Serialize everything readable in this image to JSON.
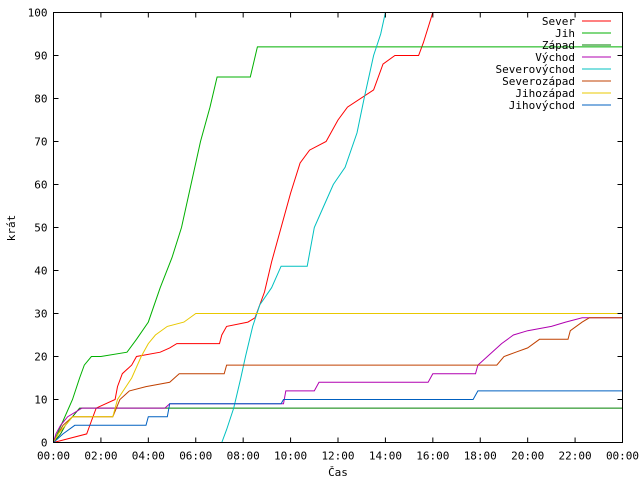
{
  "chart_data": {
    "type": "line",
    "title": "",
    "xlabel": "Čas",
    "ylabel": "krát",
    "xlim": [
      0,
      24
    ],
    "ylim": [
      0,
      100
    ],
    "x_tick_labels": [
      "00:00",
      "02:00",
      "04:00",
      "06:00",
      "08:00",
      "10:00",
      "12:00",
      "14:00",
      "16:00",
      "18:00",
      "20:00",
      "22:00",
      "00:00"
    ],
    "y_ticks": [
      0,
      10,
      20,
      30,
      40,
      50,
      60,
      70,
      80,
      90,
      100
    ],
    "grid": false,
    "legend_position": "top-right",
    "series": [
      {
        "name": "Sever",
        "color": "#ff0000",
        "points": [
          [
            0,
            0
          ],
          [
            1.4,
            2
          ],
          [
            1.6,
            5
          ],
          [
            1.8,
            8
          ],
          [
            2.6,
            10
          ],
          [
            2.7,
            13
          ],
          [
            2.9,
            16
          ],
          [
            3.3,
            18
          ],
          [
            3.5,
            20
          ],
          [
            4.5,
            21
          ],
          [
            4.9,
            22
          ],
          [
            5.2,
            23
          ],
          [
            7.0,
            23
          ],
          [
            7.1,
            25
          ],
          [
            7.3,
            27
          ],
          [
            8.2,
            28
          ],
          [
            8.5,
            29
          ],
          [
            8.9,
            35
          ],
          [
            9.2,
            42
          ],
          [
            9.6,
            50
          ],
          [
            10.0,
            58
          ],
          [
            10.4,
            65
          ],
          [
            10.8,
            68
          ],
          [
            11.5,
            70
          ],
          [
            12.0,
            75
          ],
          [
            12.4,
            78
          ],
          [
            13.5,
            82
          ],
          [
            13.9,
            88
          ],
          [
            14.4,
            90
          ],
          [
            15.4,
            90
          ],
          [
            15.6,
            93
          ],
          [
            16.0,
            100
          ]
        ]
      },
      {
        "name": "Jih",
        "color": "#00b000",
        "points": [
          [
            0,
            0
          ],
          [
            0.4,
            5
          ],
          [
            0.8,
            10
          ],
          [
            1.1,
            15
          ],
          [
            1.3,
            18
          ],
          [
            1.6,
            20
          ],
          [
            2.0,
            20
          ],
          [
            3.1,
            21
          ],
          [
            3.5,
            24
          ],
          [
            4.0,
            28
          ],
          [
            4.5,
            36
          ],
          [
            5.0,
            43
          ],
          [
            5.4,
            50
          ],
          [
            5.8,
            60
          ],
          [
            6.2,
            70
          ],
          [
            6.6,
            78
          ],
          [
            6.9,
            85
          ],
          [
            8.3,
            85
          ],
          [
            8.6,
            92
          ],
          [
            24.0,
            92
          ]
        ]
      },
      {
        "name": "Západ",
        "color": "#008000",
        "points": [
          [
            0,
            0
          ],
          [
            0.3,
            2
          ],
          [
            0.5,
            4
          ],
          [
            0.8,
            6
          ],
          [
            1.1,
            8
          ],
          [
            24.0,
            8
          ]
        ]
      },
      {
        "name": "Východ",
        "color": "#b000b0",
        "points": [
          [
            0,
            0
          ],
          [
            0.1,
            2
          ],
          [
            0.3,
            4
          ],
          [
            0.6,
            6
          ],
          [
            1.2,
            8
          ],
          [
            4.7,
            8
          ],
          [
            4.9,
            9
          ],
          [
            9.7,
            9
          ],
          [
            9.8,
            12
          ],
          [
            11.0,
            12
          ],
          [
            11.2,
            14
          ],
          [
            15.8,
            14
          ],
          [
            16.0,
            16
          ],
          [
            17.8,
            16
          ],
          [
            17.9,
            18
          ],
          [
            18.3,
            20
          ],
          [
            18.9,
            23
          ],
          [
            19.4,
            25
          ],
          [
            20.0,
            26
          ],
          [
            21.0,
            27
          ],
          [
            21.6,
            28
          ],
          [
            22.3,
            29
          ],
          [
            24.0,
            29
          ]
        ]
      },
      {
        "name": "Severovýchod",
        "color": "#00c0c0",
        "points": [
          [
            0,
            0
          ],
          [
            7.1,
            0
          ],
          [
            7.3,
            3
          ],
          [
            7.6,
            8
          ],
          [
            7.9,
            15
          ],
          [
            8.1,
            20
          ],
          [
            8.4,
            27
          ],
          [
            8.7,
            32
          ],
          [
            9.2,
            36
          ],
          [
            9.6,
            41
          ],
          [
            10.7,
            41
          ],
          [
            11.0,
            50
          ],
          [
            11.4,
            55
          ],
          [
            11.8,
            60
          ],
          [
            12.3,
            64
          ],
          [
            12.8,
            72
          ],
          [
            13.1,
            80
          ],
          [
            13.5,
            90
          ],
          [
            13.8,
            95
          ],
          [
            14.0,
            100
          ]
        ]
      },
      {
        "name": "Severozápad",
        "color": "#c04000",
        "points": [
          [
            0,
            0
          ],
          [
            0.2,
            2
          ],
          [
            0.4,
            4
          ],
          [
            0.8,
            6
          ],
          [
            2.5,
            6
          ],
          [
            2.8,
            10
          ],
          [
            3.2,
            12
          ],
          [
            3.9,
            13
          ],
          [
            4.9,
            14
          ],
          [
            5.3,
            16
          ],
          [
            7.2,
            16
          ],
          [
            7.3,
            18
          ],
          [
            18.7,
            18
          ],
          [
            19.0,
            20
          ],
          [
            19.5,
            21
          ],
          [
            20.0,
            22
          ],
          [
            20.5,
            24
          ],
          [
            21.7,
            24
          ],
          [
            21.8,
            26
          ],
          [
            22.3,
            28
          ],
          [
            22.6,
            29
          ],
          [
            24.0,
            29
          ]
        ]
      },
      {
        "name": "Jihozápad",
        "color": "#e8c800",
        "points": [
          [
            0,
            0
          ],
          [
            0.2,
            2
          ],
          [
            0.5,
            4
          ],
          [
            0.8,
            6
          ],
          [
            2.5,
            6
          ],
          [
            2.7,
            10
          ],
          [
            3.3,
            15
          ],
          [
            3.7,
            20
          ],
          [
            4.0,
            23
          ],
          [
            4.3,
            25
          ],
          [
            4.8,
            27
          ],
          [
            5.5,
            28
          ],
          [
            6.0,
            30
          ],
          [
            24.0,
            30
          ]
        ]
      },
      {
        "name": "Jihovýchod",
        "color": "#0060c0",
        "points": [
          [
            0,
            0
          ],
          [
            0.4,
            2
          ],
          [
            0.9,
            4
          ],
          [
            3.9,
            4
          ],
          [
            4.0,
            6
          ],
          [
            4.8,
            6
          ],
          [
            4.9,
            9
          ],
          [
            9.6,
            9
          ],
          [
            9.7,
            10
          ],
          [
            17.7,
            10
          ],
          [
            17.9,
            12
          ],
          [
            24.0,
            12
          ]
        ]
      }
    ]
  }
}
